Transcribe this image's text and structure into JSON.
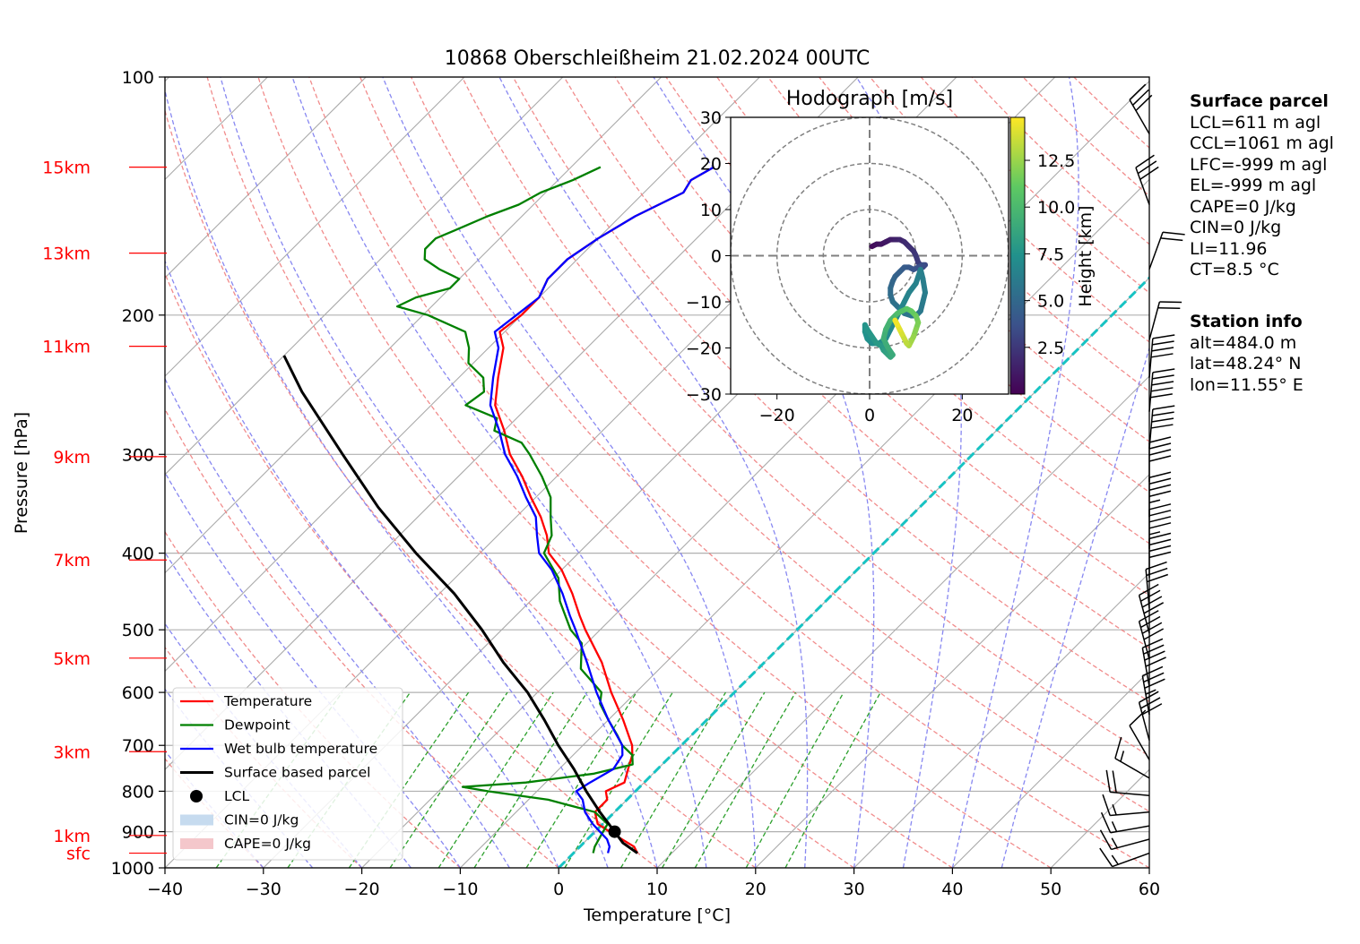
{
  "title": "10868 Oberschleißheim 21.02.2024 00UTC",
  "chart_data": {
    "type": "line",
    "subtype": "skew-t log-p sounding diagram",
    "xlabel": "Temperature [°C]",
    "ylabel": "Pressure [hPa]",
    "xlim": [
      -40,
      60
    ],
    "ylim": [
      1000,
      100
    ],
    "x_ticks": [
      "−40",
      "−30",
      "−20",
      "−10",
      "0",
      "10",
      "20",
      "30",
      "40",
      "50",
      "60"
    ],
    "y_ticks": [
      "100",
      "200",
      "300",
      "400",
      "500",
      "600",
      "700",
      "800",
      "900",
      "1000"
    ],
    "y_scale": "log",
    "grid": true,
    "height_labels": [
      {
        "label": "15km",
        "p": 130
      },
      {
        "label": "13km",
        "p": 167
      },
      {
        "label": "11km",
        "p": 219
      },
      {
        "label": "9km",
        "p": 302
      },
      {
        "label": "7km",
        "p": 408
      },
      {
        "label": "5km",
        "p": 543
      },
      {
        "label": "3km",
        "p": 713
      },
      {
        "label": "1km",
        "p": 910
      },
      {
        "label": "sfc",
        "p": 958
      }
    ],
    "legend": {
      "placement": "lower-left",
      "entries": [
        {
          "label": "Temperature",
          "color": "#ff0000"
        },
        {
          "label": "Dewpoint",
          "color": "#008000"
        },
        {
          "label": "Wet bulb temperature",
          "color": "#0000ff"
        },
        {
          "label": "Surface based parcel",
          "color": "#000000"
        },
        {
          "label": "LCL",
          "color": "#000000"
        },
        {
          "label": "CIN=0 J/kg",
          "color": "#c6dbef"
        },
        {
          "label": "CAPE=0 J/kg",
          "color": "#f4c7cb"
        }
      ]
    },
    "series": [
      {
        "name": "Temperature",
        "color": "#ff0000",
        "points": [
          [
            958,
            6.5
          ],
          [
            940,
            5.5
          ],
          [
            920,
            3.5
          ],
          [
            900,
            1.5
          ],
          [
            880,
            -0.5
          ],
          [
            850,
            -2.0
          ],
          [
            820,
            -2.0
          ],
          [
            800,
            -3.0
          ],
          [
            780,
            -2.0
          ],
          [
            750,
            -3.0
          ],
          [
            720,
            -4.0
          ],
          [
            700,
            -5.0
          ],
          [
            650,
            -8.5
          ],
          [
            600,
            -12.5
          ],
          [
            550,
            -16.5
          ],
          [
            500,
            -21.5
          ],
          [
            480,
            -23.5
          ],
          [
            450,
            -26.5
          ],
          [
            420,
            -30.0
          ],
          [
            400,
            -33.0
          ],
          [
            380,
            -35.0
          ],
          [
            360,
            -37.5
          ],
          [
            340,
            -40.5
          ],
          [
            320,
            -43.5
          ],
          [
            300,
            -47.0
          ],
          [
            280,
            -50.0
          ],
          [
            260,
            -53.5
          ],
          [
            240,
            -56.0
          ],
          [
            220,
            -58.5
          ],
          [
            210,
            -60.5
          ],
          [
            200,
            -60.0
          ],
          [
            190,
            -60.0
          ],
          [
            180,
            -61.0
          ],
          [
            170,
            -61.0
          ],
          [
            160,
            -60.0
          ],
          [
            150,
            -58.5
          ],
          [
            140,
            -56.0
          ],
          [
            135,
            -56.5
          ],
          [
            130,
            -55.5
          ]
        ]
      },
      {
        "name": "Dewpoint",
        "color": "#008000",
        "points": [
          [
            958,
            2.0
          ],
          [
            940,
            1.5
          ],
          [
            910,
            1.0
          ],
          [
            880,
            0.5
          ],
          [
            850,
            -2.0
          ],
          [
            820,
            -8.0
          ],
          [
            800,
            -15.0
          ],
          [
            790,
            -18.0
          ],
          [
            780,
            -12.0
          ],
          [
            760,
            -6.0
          ],
          [
            740,
            -3.0
          ],
          [
            720,
            -4.0
          ],
          [
            700,
            -6.0
          ],
          [
            680,
            -7.5
          ],
          [
            650,
            -10.0
          ],
          [
            620,
            -12.5
          ],
          [
            600,
            -13.5
          ],
          [
            560,
            -18.0
          ],
          [
            520,
            -20.5
          ],
          [
            500,
            -23.0
          ],
          [
            460,
            -27.0
          ],
          [
            430,
            -29.5
          ],
          [
            400,
            -33.5
          ],
          [
            380,
            -34.5
          ],
          [
            360,
            -36.5
          ],
          [
            340,
            -38.5
          ],
          [
            320,
            -41.5
          ],
          [
            300,
            -45.0
          ],
          [
            290,
            -47.0
          ],
          [
            280,
            -51.0
          ],
          [
            270,
            -52.0
          ],
          [
            260,
            -56.5
          ],
          [
            250,
            -56.0
          ],
          [
            240,
            -57.5
          ],
          [
            230,
            -60.5
          ],
          [
            220,
            -62.0
          ],
          [
            210,
            -64.0
          ],
          [
            200,
            -69.5
          ],
          [
            195,
            -73.5
          ],
          [
            190,
            -72.5
          ],
          [
            185,
            -70.0
          ],
          [
            180,
            -70.0
          ],
          [
            175,
            -73.0
          ],
          [
            170,
            -75.5
          ],
          [
            165,
            -76.5
          ],
          [
            160,
            -76.5
          ],
          [
            155,
            -75.0
          ],
          [
            150,
            -73.5
          ],
          [
            145,
            -71.5
          ],
          [
            140,
            -70.5
          ],
          [
            135,
            -68.5
          ],
          [
            130,
            -67.0
          ]
        ]
      },
      {
        "name": "Wet bulb temperature",
        "color": "#0000ff",
        "points": [
          [
            958,
            3.5
          ],
          [
            940,
            3.0
          ],
          [
            920,
            2.0
          ],
          [
            900,
            0.5
          ],
          [
            880,
            -1.0
          ],
          [
            850,
            -3.0
          ],
          [
            820,
            -4.5
          ],
          [
            800,
            -6.0
          ],
          [
            780,
            -5.5
          ],
          [
            750,
            -4.5
          ],
          [
            720,
            -5.0
          ],
          [
            700,
            -6.0
          ],
          [
            650,
            -10.0
          ],
          [
            600,
            -14.0
          ],
          [
            550,
            -18.0
          ],
          [
            500,
            -22.5
          ],
          [
            480,
            -24.5
          ],
          [
            450,
            -27.5
          ],
          [
            420,
            -31.0
          ],
          [
            400,
            -34.0
          ],
          [
            380,
            -36.0
          ],
          [
            360,
            -38.0
          ],
          [
            340,
            -41.0
          ],
          [
            320,
            -44.0
          ],
          [
            300,
            -47.5
          ],
          [
            280,
            -50.5
          ],
          [
            260,
            -54.0
          ],
          [
            240,
            -56.5
          ],
          [
            220,
            -59.0
          ],
          [
            210,
            -61.0
          ],
          [
            200,
            -60.5
          ],
          [
            190,
            -60.0
          ],
          [
            180,
            -61.0
          ],
          [
            170,
            -61.0
          ],
          [
            160,
            -60.0
          ],
          [
            150,
            -58.5
          ],
          [
            140,
            -56.0
          ],
          [
            135,
            -56.5
          ],
          [
            130,
            -55.5
          ]
        ]
      },
      {
        "name": "Surface based parcel",
        "color": "#000000",
        "points": [
          [
            958,
            6.5
          ],
          [
            930,
            4.0
          ],
          [
            900,
            2.0
          ],
          [
            850,
            -1.5
          ],
          [
            800,
            -5.0
          ],
          [
            750,
            -8.5
          ],
          [
            700,
            -12.5
          ],
          [
            650,
            -16.5
          ],
          [
            600,
            -21.0
          ],
          [
            550,
            -26.5
          ],
          [
            500,
            -32.0
          ],
          [
            450,
            -38.5
          ],
          [
            400,
            -46.5
          ],
          [
            350,
            -55.0
          ],
          [
            300,
            -64.0
          ],
          [
            250,
            -74.5
          ],
          [
            225,
            -80.0
          ]
        ]
      }
    ],
    "lcl": {
      "p": 900,
      "t": 2.0
    },
    "surface_parcel": [
      "LCL=611 m agl",
      "CCL=1061 m agl",
      "LFC=-999 m agl",
      "EL=-999 m agl",
      "CAPE=0 J/kg",
      "CIN=0 J/kg",
      "LI=11.96",
      "CT=8.5 °C"
    ],
    "station_info": [
      "alt=484.0 m",
      "lat=48.24° N",
      "lon=11.55° E"
    ],
    "hodograph": {
      "title": "Hodograph [m/s]",
      "xlim": [
        -30,
        30
      ],
      "ylim": [
        -30,
        30
      ],
      "x_ticks": [
        "−20",
        "0",
        "20"
      ],
      "y_ticks": [
        "30",
        "20",
        "10",
        "0",
        "−10",
        "−20",
        "−30"
      ],
      "rings": [
        10,
        20,
        30
      ],
      "colorbar": {
        "label": "Height [km]",
        "ticks": [
          "2.5",
          "5.0",
          "7.5",
          "10.0",
          "12.5"
        ],
        "colormap": "viridis",
        "range": [
          0,
          14.8
        ]
      },
      "u": [
        0.5,
        1.5,
        2.5,
        3.5,
        4.5,
        5.5,
        6.5,
        7.5,
        8.5,
        9.5,
        10.0,
        10.5,
        11.0,
        11.5,
        12.0,
        11.5,
        10.5,
        9.5,
        8.5,
        7.5,
        6.5,
        5.5,
        5.0,
        4.5,
        4.5,
        5.0,
        6.0,
        7.5,
        9.0,
        10.0,
        11.0,
        11.5,
        12.0,
        11.5,
        11.0,
        10.0,
        8.5,
        7.5,
        6.5,
        5.5,
        4.5,
        3.5,
        2.0,
        0.5,
        -0.5,
        -1.0,
        -1.0,
        -0.5,
        0.5,
        1.5,
        2.5,
        3.0,
        3.5,
        4.0,
        4.5,
        5.0,
        4.0,
        3.0,
        3.5,
        4.5,
        5.5,
        6.0,
        7.0,
        8.0,
        9.0,
        10.0,
        10.5,
        10.0,
        9.5,
        9.0,
        8.5,
        8.0,
        7.5,
        7.0,
        6.5,
        6.0,
        5.5
      ],
      "v": [
        2.0,
        2.5,
        2.5,
        3.0,
        3.5,
        3.5,
        3.5,
        3.0,
        2.0,
        1.0,
        0.0,
        -1.5,
        -2.0,
        -2.5,
        -2.0,
        -2.0,
        -2.5,
        -3.0,
        -2.5,
        -2.5,
        -3.5,
        -4.5,
        -5.5,
        -7.0,
        -8.5,
        -10.0,
        -11.0,
        -12.5,
        -13.0,
        -13.0,
        -12.0,
        -10.0,
        -8.0,
        -5.0,
        -3.0,
        -6.0,
        -8.0,
        -10.0,
        -12.0,
        -14.0,
        -16.0,
        -18.0,
        -19.0,
        -19.0,
        -18.0,
        -16.5,
        -15.0,
        -16.0,
        -17.5,
        -19.0,
        -19.5,
        -20.5,
        -21.0,
        -21.5,
        -22.0,
        -21.5,
        -20.0,
        -18.0,
        -16.0,
        -14.0,
        -13.0,
        -12.5,
        -12.0,
        -11.5,
        -12.0,
        -13.0,
        -14.5,
        -16.0,
        -17.5,
        -18.5,
        -19.5,
        -19.0,
        -18.0,
        -17.0,
        -16.0,
        -15.0,
        -14.0
      ],
      "heights_km": [
        0.5,
        0.7,
        0.9,
        1.1,
        1.3,
        1.5,
        1.7,
        1.9,
        2.1,
        2.3,
        2.5,
        2.7,
        2.9,
        3.1,
        3.3,
        3.5,
        3.7,
        3.9,
        4.1,
        4.3,
        4.5,
        4.7,
        4.9,
        5.1,
        5.3,
        5.5,
        5.6,
        5.7,
        5.8,
        5.9,
        6.0,
        6.1,
        6.2,
        6.3,
        6.4,
        6.5,
        6.6,
        6.7,
        6.8,
        6.9,
        7.0,
        7.1,
        7.2,
        7.3,
        7.4,
        7.5,
        7.6,
        7.7,
        7.8,
        7.9,
        8.0,
        8.2,
        8.4,
        8.6,
        8.8,
        9.0,
        9.2,
        9.4,
        9.6,
        9.8,
        10.0,
        10.3,
        10.6,
        10.9,
        11.2,
        11.5,
        11.8,
        12.1,
        12.4,
        12.7,
        13.0,
        13.3,
        13.6,
        13.9,
        14.2,
        14.5,
        14.8
      ]
    },
    "wind_barbs": [
      {
        "p": 958,
        "speed_kt": 15,
        "dir_deg": 250
      },
      {
        "p": 920,
        "speed_kt": 15,
        "dir_deg": 255
      },
      {
        "p": 885,
        "speed_kt": 15,
        "dir_deg": 260
      },
      {
        "p": 850,
        "speed_kt": 15,
        "dir_deg": 265
      },
      {
        "p": 810,
        "speed_kt": 20,
        "dir_deg": 275
      },
      {
        "p": 770,
        "speed_kt": 15,
        "dir_deg": 300
      },
      {
        "p": 730,
        "speed_kt": 10,
        "dir_deg": 330
      },
      {
        "p": 690,
        "speed_kt": 30,
        "dir_deg": 345
      },
      {
        "p": 640,
        "speed_kt": 35,
        "dir_deg": 350
      },
      {
        "p": 590,
        "speed_kt": 40,
        "dir_deg": 350
      },
      {
        "p": 545,
        "speed_kt": 40,
        "dir_deg": 345
      },
      {
        "p": 505,
        "speed_kt": 40,
        "dir_deg": 345
      },
      {
        "p": 470,
        "speed_kt": 30,
        "dir_deg": 355
      },
      {
        "p": 430,
        "speed_kt": 40,
        "dir_deg": 0
      },
      {
        "p": 395,
        "speed_kt": 45,
        "dir_deg": 0
      },
      {
        "p": 360,
        "speed_kt": 45,
        "dir_deg": 0
      },
      {
        "p": 325,
        "speed_kt": 40,
        "dir_deg": 0
      },
      {
        "p": 295,
        "speed_kt": 40,
        "dir_deg": 5
      },
      {
        "p": 265,
        "speed_kt": 50,
        "dir_deg": 5
      },
      {
        "p": 240,
        "speed_kt": 40,
        "dir_deg": 5
      },
      {
        "p": 215,
        "speed_kt": 20,
        "dir_deg": 15
      },
      {
        "p": 175,
        "speed_kt": 20,
        "dir_deg": 20
      },
      {
        "p": 145,
        "speed_kt": 30,
        "dir_deg": 340
      },
      {
        "p": 118,
        "speed_kt": 30,
        "dir_deg": 330
      }
    ],
    "background_colors": {
      "dry_adiabats": "#f08080",
      "moist_adiabats": "#7b7bf0",
      "mixing_ratio": "#2ca02c",
      "isotherms": "#aaaaaa",
      "zero_isotherm": "#17c3c3",
      "height_labels": "#ff0000"
    }
  }
}
